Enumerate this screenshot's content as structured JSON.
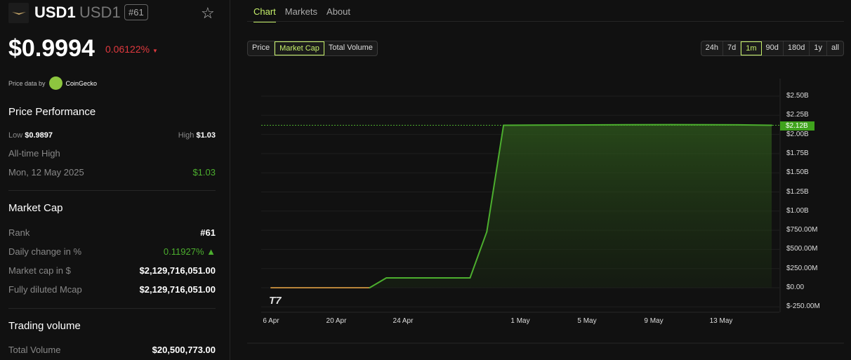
{
  "coin": {
    "name": "USD1",
    "symbol": "USD1",
    "rank": "#61",
    "price": "$0.9994",
    "change": "0.06122%",
    "change_arrow": "▼",
    "price_data_by": "Price data by",
    "provider": "CoinGecko"
  },
  "performance": {
    "title": "Price Performance",
    "low_label": "Low",
    "low": "$0.9897",
    "high_label": "High",
    "high": "$1.03",
    "ath_label": "All-time High",
    "ath_date": "Mon, 12 May 2025",
    "ath": "$1.03"
  },
  "market_cap": {
    "title": "Market Cap",
    "rows": [
      {
        "label": "Rank",
        "value": "#61"
      },
      {
        "label": "Daily change in %",
        "value": "0.11927% ▲"
      },
      {
        "label": "Market cap in $",
        "value": "$2,129,716,051.00"
      },
      {
        "label": "Fully diluted Mcap",
        "value": "$2,129,716,051.00"
      }
    ]
  },
  "volume": {
    "title": "Trading volume",
    "label": "Total Volume",
    "value": "$20,500,773.00"
  },
  "tabs": [
    "Chart",
    "Markets",
    "About"
  ],
  "metrics": [
    "Price",
    "Market Cap",
    "Total Volume"
  ],
  "ranges": [
    "24h",
    "7d",
    "1m",
    "90d",
    "180d",
    "1y",
    "all"
  ],
  "colors": {
    "accent": "#c6f06a",
    "up": "#4cae2e",
    "down": "#e0393e",
    "line": "#4cae2e",
    "baseline": "#b8843a"
  },
  "chart_data": {
    "type": "area",
    "y_ticks": [
      "$2.50B",
      "$2.25B",
      "$2.00B",
      "$1.75B",
      "$1.50B",
      "$1.25B",
      "$1.00B",
      "$750.00M",
      "$500.00M",
      "$250.00M",
      "$0.00",
      "$-250.00M"
    ],
    "x_ticks": [
      "6 Apr",
      "20 Apr",
      "24 Apr",
      "1 May",
      "5 May",
      "9 May",
      "13 May"
    ],
    "ylim": [
      -250000000,
      2500000000
    ],
    "last_value_label": "$2.12B",
    "points": [
      [
        "2025-04-06",
        0
      ],
      [
        "2025-04-22",
        0
      ],
      [
        "2025-04-23",
        128000000
      ],
      [
        "2025-04-28",
        128000000
      ],
      [
        "2025-04-29",
        730000000
      ],
      [
        "2025-04-30",
        2120000000
      ],
      [
        "2025-05-05",
        2125000000
      ],
      [
        "2025-05-10",
        2128000000
      ],
      [
        "2025-05-14",
        2126000000
      ],
      [
        "2025-05-16",
        2120000000
      ]
    ]
  }
}
